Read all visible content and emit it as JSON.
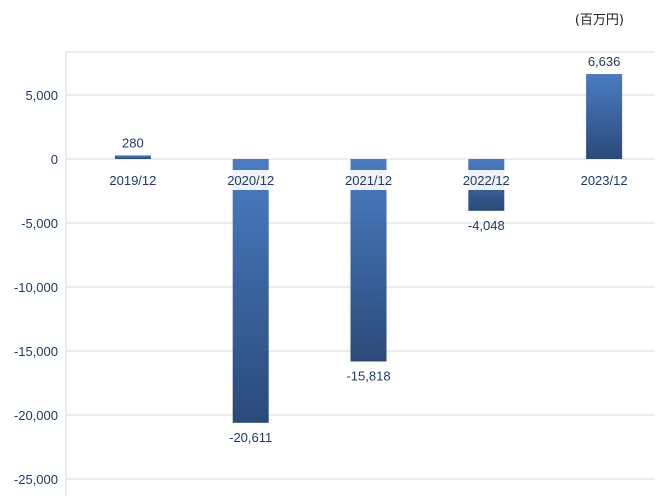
{
  "unit_label": "(百万円)",
  "chart_data": {
    "type": "bar",
    "categories": [
      "2019/12",
      "2020/12",
      "2021/12",
      "2022/12",
      "2023/12"
    ],
    "values": [
      280,
      -20611,
      -15818,
      -4048,
      6636
    ],
    "value_labels": [
      "280",
      "-20,611",
      "-15,818",
      "-4,048",
      "6,636"
    ],
    "y_ticks": [
      5000,
      0,
      -5000,
      -10000,
      -15000,
      -20000,
      -25000
    ],
    "y_tick_labels": [
      "5,000",
      "0",
      "-5,000",
      "-10,000",
      "-15,000",
      "-20,000",
      "-25,000"
    ],
    "ylim": [
      -25000,
      8000
    ],
    "grid": true,
    "colors": {
      "bar_top": "#4a7cc3",
      "bar_bottom": "#2a4a7a",
      "text": "#1f3a66",
      "grid": "#d9d9d9"
    }
  }
}
